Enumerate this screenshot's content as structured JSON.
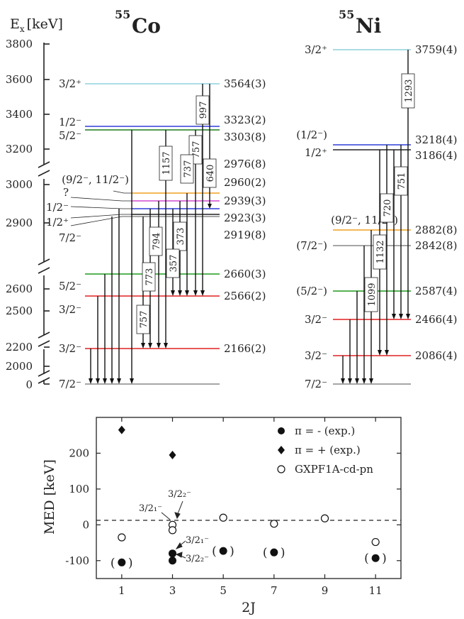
{
  "top": {
    "y_axis_label": "E",
    "y_axis_sub": "x",
    "y_axis_unit": "[keV]",
    "y_ticks": [
      "3800",
      "3600",
      "3400",
      "3200",
      "3000",
      "2900",
      "2600",
      "2500",
      "2200",
      "2000",
      "0"
    ],
    "co": {
      "mass": "55",
      "symbol": "Co",
      "levels": [
        {
          "spin": "3/2⁺",
          "energy": "3564(3)",
          "color": "#8fd0dc"
        },
        {
          "spin": "1/2⁻",
          "energy": "3323(2)",
          "color": "#2f3fd6"
        },
        {
          "spin": "5/2⁻",
          "energy": "3303(8)",
          "color": "#1f7a1f"
        },
        {
          "spin": "",
          "energy": "2976(8)",
          "color": "#f0a020"
        },
        {
          "spin": "(9/2⁻, 11/2⁻)",
          "energy": "2960(2)",
          "color": "#f0a020"
        },
        {
          "spin": "?",
          "energy": "2939(3)",
          "color": "#d04ad0"
        },
        {
          "spin": "1/2⁻",
          "energy": "2923(3)",
          "color": "#2f3fd6"
        },
        {
          "spin": "1/2⁺",
          "energy": "2919(8)",
          "color": "#222222"
        },
        {
          "spin": "7/2⁻",
          "energy": "",
          "color": "#888888"
        },
        {
          "spin": "5/2⁻",
          "energy": "2660(3)",
          "color": "#1f9a1f"
        },
        {
          "spin": "3/2⁻",
          "energy": "2566(2)",
          "color": "#e02020"
        },
        {
          "spin": "3/2⁻",
          "energy": "2166(2)",
          "color": "#e02020"
        },
        {
          "spin": "7/2⁻",
          "energy": "",
          "color": "#888888"
        }
      ],
      "transitions": [
        "997",
        "1157",
        "757",
        "737",
        "640",
        "794",
        "373",
        "773",
        "357",
        "757"
      ]
    },
    "ni": {
      "mass": "55",
      "symbol": "Ni",
      "levels": [
        {
          "spin": "3/2⁺",
          "energy": "3759(4)",
          "color": "#8fd0dc"
        },
        {
          "spin": "(1/2⁻)",
          "energy": "3218(4)",
          "color": "#2f3fd6"
        },
        {
          "spin": "1/2⁺",
          "energy": "3186(4)",
          "color": "#222222"
        },
        {
          "spin": "(9/2⁻, 11/2⁻)",
          "energy": "2882(8)",
          "color": "#f0a020"
        },
        {
          "spin": "(7/2⁻)",
          "energy": "2842(8)",
          "color": "#888888"
        },
        {
          "spin": "(5/2⁻)",
          "energy": "2587(4)",
          "color": "#1f9a1f"
        },
        {
          "spin": "3/2⁻",
          "energy": "2466(4)",
          "color": "#e02020"
        },
        {
          "spin": "3/2⁻",
          "energy": "2086(4)",
          "color": "#e02020"
        },
        {
          "spin": "7/2⁻",
          "energy": "",
          "color": "#888888"
        }
      ],
      "transitions": [
        "1293",
        "751",
        "720",
        "1132",
        "1099"
      ]
    }
  },
  "chart_data": {
    "type": "scatter",
    "xlabel": "2J",
    "ylabel": "MED [keV]",
    "xlim": [
      0,
      12
    ],
    "ylim": [
      -150,
      300
    ],
    "x_ticks": [
      "1",
      "3",
      "5",
      "7",
      "9",
      "11"
    ],
    "y_ticks": [
      "-100",
      "0",
      "100",
      "200"
    ],
    "series": [
      {
        "name": "π = - (exp.)",
        "marker": "filled-circle",
        "points": [
          [
            1,
            -105
          ],
          [
            3,
            -80
          ],
          [
            3,
            -100
          ],
          [
            5,
            -73
          ],
          [
            7,
            -77
          ],
          [
            11,
            -93
          ]
        ]
      },
      {
        "name": "π = + (exp.)",
        "marker": "filled-diamond",
        "points": [
          [
            1,
            265
          ],
          [
            3,
            195
          ]
        ]
      },
      {
        "name": "GXPF1A-cd-pn",
        "marker": "open-circle",
        "points": [
          [
            1,
            -35
          ],
          [
            3,
            0
          ],
          [
            3,
            -15
          ],
          [
            5,
            20
          ],
          [
            7,
            3
          ],
          [
            9,
            18
          ],
          [
            11,
            -48
          ]
        ]
      }
    ],
    "bracket_marks": [
      "(",
      ")"
    ],
    "annotations": [
      "3/2₁⁻",
      "3/2₂⁻",
      "3/2₁⁻",
      "3/2₂⁻"
    ]
  }
}
